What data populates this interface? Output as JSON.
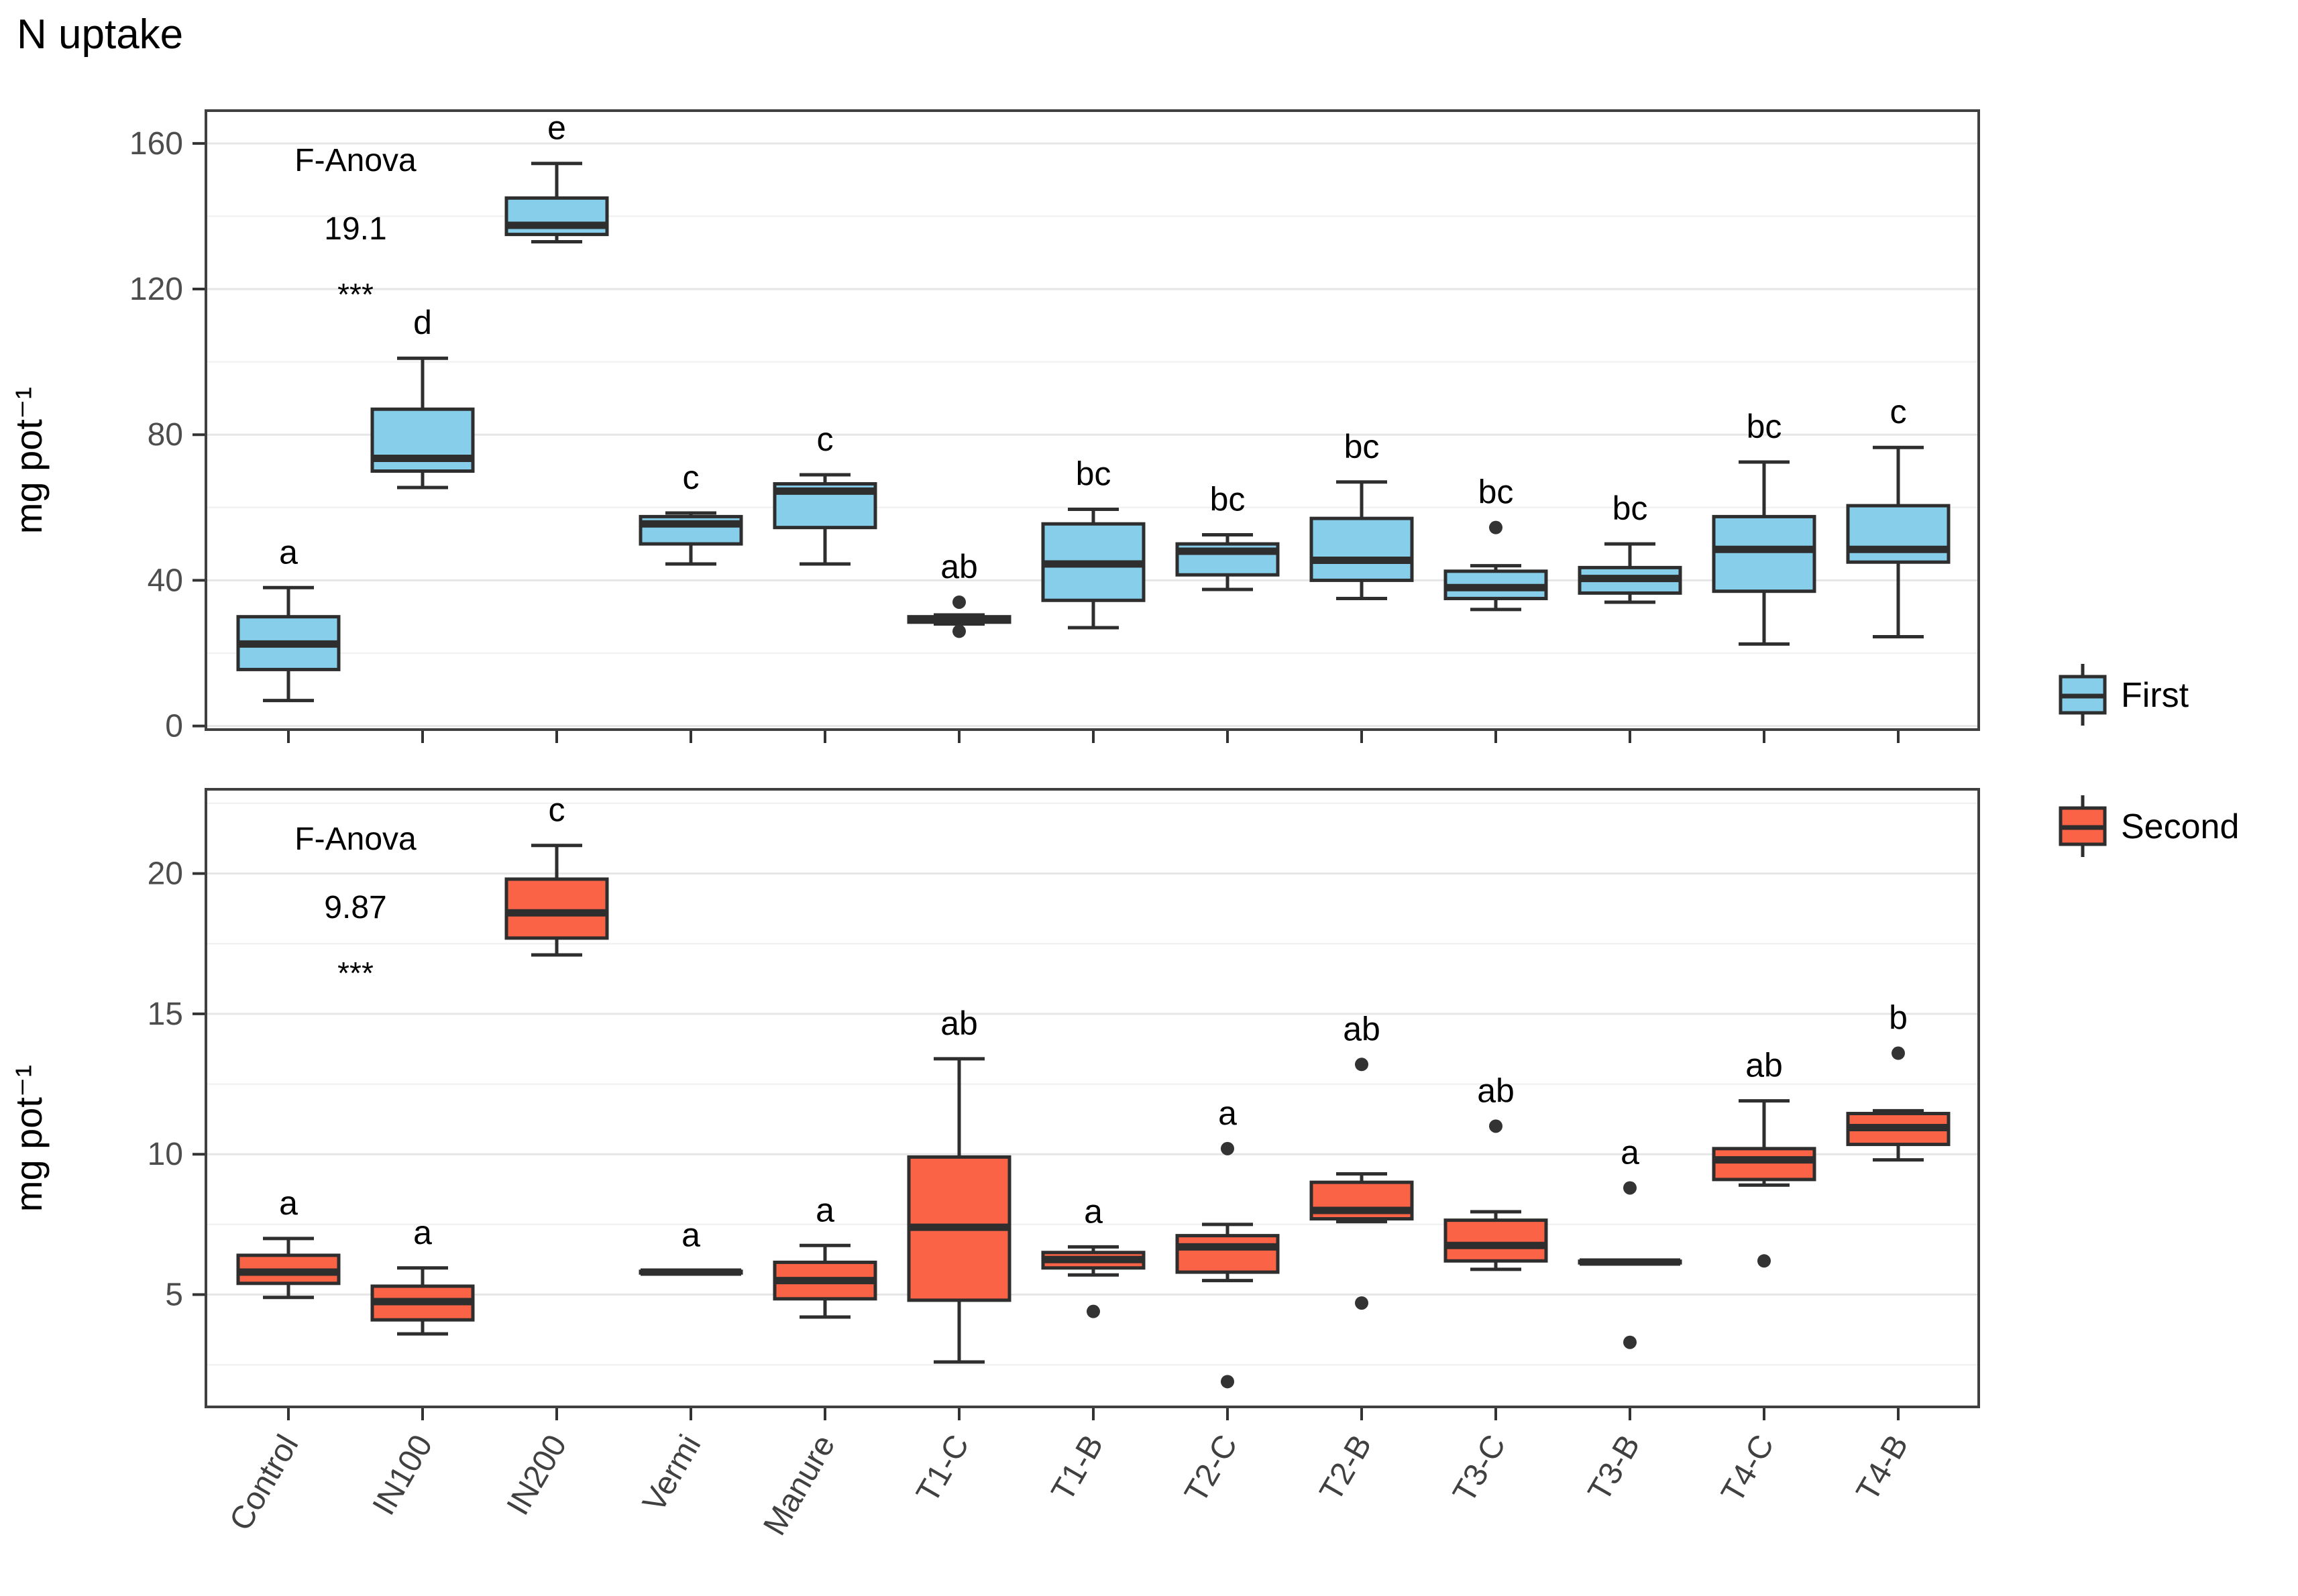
{
  "title": "N uptake",
  "y_axis_label": "mg pot⁻¹",
  "categories": [
    "Control",
    "IN100",
    "IN200",
    "Vermi",
    "Manure",
    "T1-C",
    "T1-B",
    "T2-C",
    "T2-B",
    "T3-C",
    "T3-B",
    "T4-C",
    "T4-B"
  ],
  "colors": {
    "first_fill": "#87CEEB",
    "second_fill": "#FB6347",
    "box_border": "#2E2E2E",
    "panel_border": "#404040",
    "grid_major": "#E6E6E6",
    "grid_minor": "#F2F2F2",
    "tick_label": "#4D4D4D",
    "text": "#000000"
  },
  "legend": {
    "entries": [
      {
        "label": "First",
        "color": "#87CEEB"
      },
      {
        "label": "Second",
        "color": "#FB6347"
      }
    ]
  },
  "chart_data": [
    {
      "type": "boxplot",
      "panel": "first",
      "series": "First",
      "fill": "#87CEEB",
      "annotation": {
        "test": "F-Anova",
        "value": "19.1",
        "significance": "***"
      },
      "ylim": [
        -1,
        169
      ],
      "yticks": [
        0,
        40,
        80,
        120,
        160
      ],
      "yminor": [
        20,
        60,
        100,
        140
      ],
      "grid": true,
      "legend_position": "right",
      "ylabel": "mg pot⁻¹",
      "boxes": [
        {
          "category": "Control",
          "letter": "a",
          "whisker_low": 7,
          "q1": 15.5,
          "median": 22.5,
          "q3": 30,
          "whisker_high": 38,
          "outliers": []
        },
        {
          "category": "IN100",
          "letter": "d",
          "whisker_low": 65.5,
          "q1": 70,
          "median": 73.5,
          "q3": 87,
          "whisker_high": 101,
          "outliers": []
        },
        {
          "category": "IN200",
          "letter": "e",
          "whisker_low": 133,
          "q1": 135,
          "median": 137.5,
          "q3": 145,
          "whisker_high": 154.5,
          "outliers": []
        },
        {
          "category": "Vermi",
          "letter": "c",
          "whisker_low": 44.5,
          "q1": 50,
          "median": 55.5,
          "q3": 57.5,
          "whisker_high": 58.5,
          "outliers": []
        },
        {
          "category": "Manure",
          "letter": "c",
          "whisker_low": 44.5,
          "q1": 54.5,
          "median": 64.5,
          "q3": 66.5,
          "whisker_high": 69,
          "outliers": []
        },
        {
          "category": "T1-C",
          "letter": "ab",
          "whisker_low": 28,
          "q1": 28.5,
          "median": 29.2,
          "q3": 30,
          "whisker_high": 30.5,
          "outliers": [
            34,
            26
          ]
        },
        {
          "category": "T1-B",
          "letter": "bc",
          "whisker_low": 27,
          "q1": 34.5,
          "median": 44.5,
          "q3": 55.5,
          "whisker_high": 59.5,
          "outliers": []
        },
        {
          "category": "T2-C",
          "letter": "bc",
          "whisker_low": 37.5,
          "q1": 41.5,
          "median": 48,
          "q3": 50,
          "whisker_high": 52.5,
          "outliers": []
        },
        {
          "category": "T2-B",
          "letter": "bc",
          "whisker_low": 35,
          "q1": 40,
          "median": 45.5,
          "q3": 57,
          "whisker_high": 67,
          "outliers": []
        },
        {
          "category": "T3-C",
          "letter": "bc",
          "whisker_low": 32,
          "q1": 35,
          "median": 38,
          "q3": 42.5,
          "whisker_high": 44,
          "outliers": [
            54.5
          ]
        },
        {
          "category": "T3-B",
          "letter": "bc",
          "whisker_low": 34,
          "q1": 36.5,
          "median": 40.5,
          "q3": 43.5,
          "whisker_high": 50,
          "outliers": []
        },
        {
          "category": "T4-C",
          "letter": "bc",
          "whisker_low": 22.5,
          "q1": 37,
          "median": 48.5,
          "q3": 57.5,
          "whisker_high": 72.5,
          "outliers": []
        },
        {
          "category": "T4-B",
          "letter": "c",
          "whisker_low": 24.5,
          "q1": 45,
          "median": 48.5,
          "q3": 60.5,
          "whisker_high": 76.5,
          "outliers": []
        }
      ]
    },
    {
      "type": "boxplot",
      "panel": "second",
      "series": "Second",
      "fill": "#FB6347",
      "annotation": {
        "test": "F-Anova",
        "value": "9.87",
        "significance": "***"
      },
      "ylim": [
        1,
        23
      ],
      "yticks": [
        5,
        10,
        15,
        20
      ],
      "yminor": [
        2.5,
        7.5,
        12.5,
        17.5,
        22.5
      ],
      "grid": true,
      "legend_position": "right",
      "ylabel": "mg pot⁻¹",
      "boxes": [
        {
          "category": "Control",
          "letter": "a",
          "whisker_low": 4.9,
          "q1": 5.4,
          "median": 5.8,
          "q3": 6.4,
          "whisker_high": 7.0,
          "outliers": []
        },
        {
          "category": "IN100",
          "letter": "a",
          "whisker_low": 3.6,
          "q1": 4.1,
          "median": 4.75,
          "q3": 5.3,
          "whisker_high": 5.95,
          "outliers": []
        },
        {
          "category": "IN200",
          "letter": "c",
          "whisker_low": 17.1,
          "q1": 17.7,
          "median": 18.6,
          "q3": 19.8,
          "whisker_high": 21.0,
          "outliers": []
        },
        {
          "category": "Vermi",
          "letter": "a",
          "whisker_low": 5.74,
          "q1": 5.77,
          "median": 5.8,
          "q3": 5.83,
          "whisker_high": 5.86,
          "outliers": []
        },
        {
          "category": "Manure",
          "letter": "a",
          "whisker_low": 4.2,
          "q1": 4.85,
          "median": 5.5,
          "q3": 6.15,
          "whisker_high": 6.75,
          "outliers": []
        },
        {
          "category": "T1-C",
          "letter": "ab",
          "whisker_low": 2.6,
          "q1": 4.8,
          "median": 7.4,
          "q3": 9.9,
          "whisker_high": 13.4,
          "outliers": []
        },
        {
          "category": "T1-B",
          "letter": "a",
          "whisker_low": 5.7,
          "q1": 5.95,
          "median": 6.25,
          "q3": 6.5,
          "whisker_high": 6.7,
          "outliers": [
            4.4
          ]
        },
        {
          "category": "T2-C",
          "letter": "a",
          "whisker_low": 5.5,
          "q1": 5.8,
          "median": 6.7,
          "q3": 7.1,
          "whisker_high": 7.5,
          "outliers": [
            10.2,
            1.9
          ]
        },
        {
          "category": "T2-B",
          "letter": "ab",
          "whisker_low": 7.6,
          "q1": 7.7,
          "median": 8.0,
          "q3": 9.0,
          "whisker_high": 9.3,
          "outliers": [
            13.2,
            4.7
          ]
        },
        {
          "category": "T3-C",
          "letter": "ab",
          "whisker_low": 5.9,
          "q1": 6.2,
          "median": 6.75,
          "q3": 7.65,
          "whisker_high": 7.95,
          "outliers": [
            11.0
          ]
        },
        {
          "category": "T3-B",
          "letter": "a",
          "whisker_low": 6.1,
          "q1": 6.13,
          "median": 6.16,
          "q3": 6.19,
          "whisker_high": 6.22,
          "outliers": [
            8.8,
            3.3
          ]
        },
        {
          "category": "T4-C",
          "letter": "ab",
          "whisker_low": 8.9,
          "q1": 9.1,
          "median": 9.8,
          "q3": 10.2,
          "whisker_high": 11.9,
          "outliers": [
            6.2
          ]
        },
        {
          "category": "T4-B",
          "letter": "b",
          "whisker_low": 9.8,
          "q1": 10.35,
          "median": 10.95,
          "q3": 11.45,
          "whisker_high": 11.55,
          "outliers": [
            13.6
          ]
        }
      ]
    }
  ]
}
